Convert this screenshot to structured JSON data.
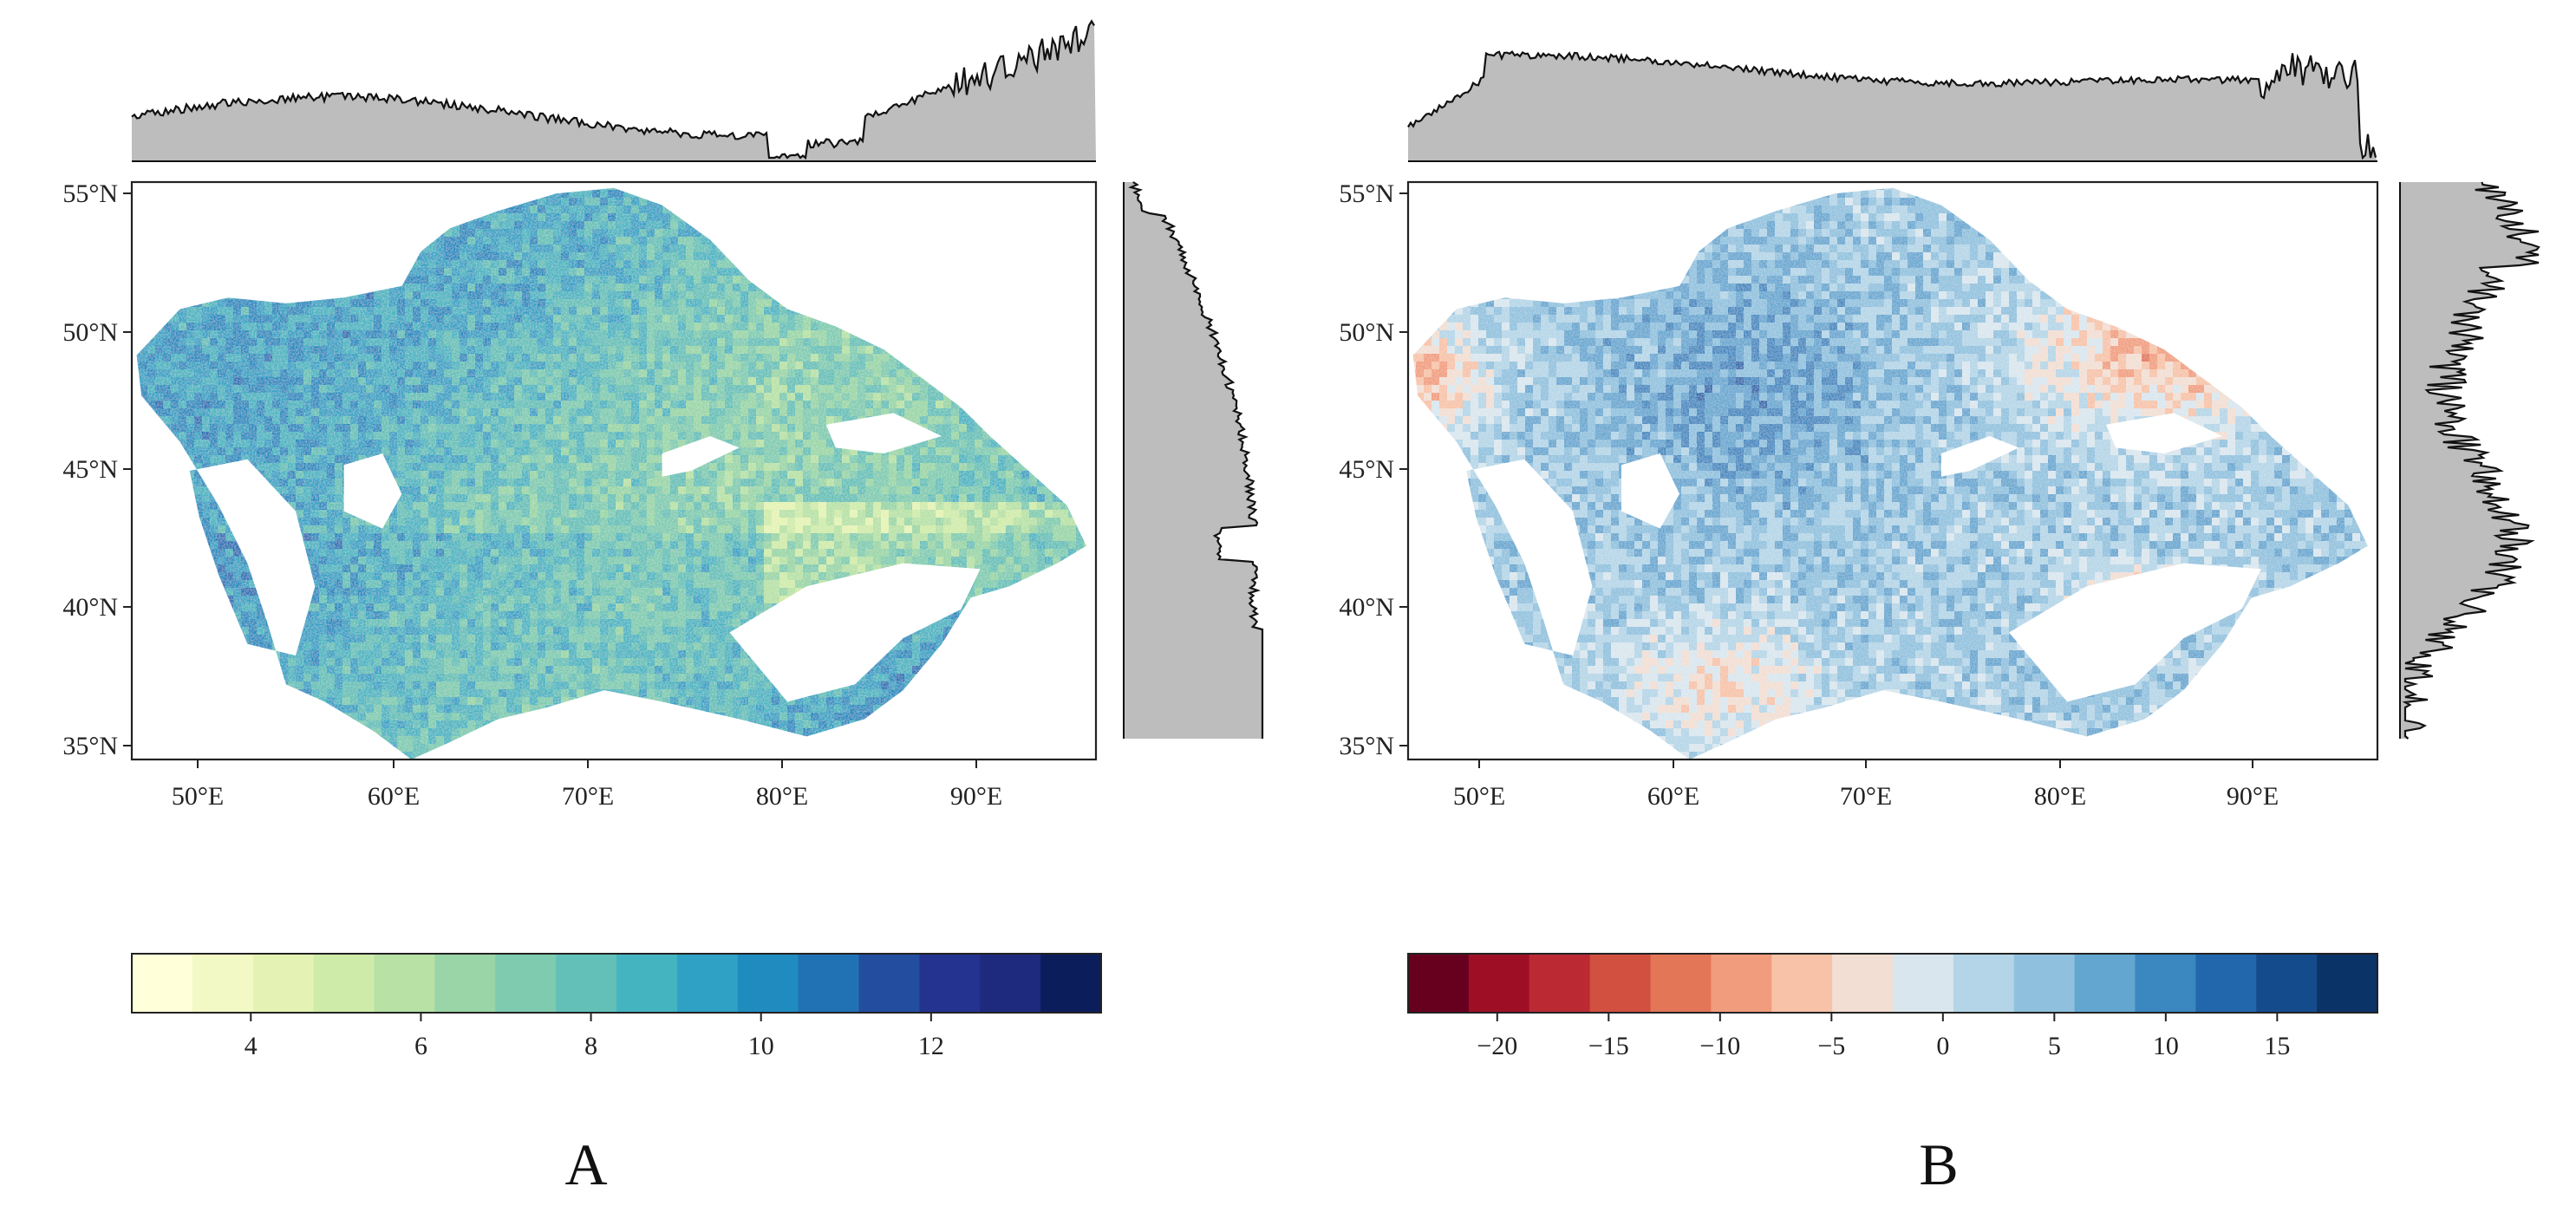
{
  "panels": [
    {
      "id": "A",
      "label": "A",
      "palette": "sequential-yellow-green-blue",
      "longitude_ticks": [
        "50°E",
        "60°E",
        "70°E",
        "80°E",
        "90°E"
      ],
      "latitude_ticks": [
        "55°N",
        "50°N",
        "45°N",
        "40°N",
        "35°N"
      ],
      "colorbar": {
        "min": 2.6,
        "max": 14.0,
        "tick_values": [
          4,
          6,
          8,
          10,
          12
        ],
        "tick_labels": [
          "4",
          "6",
          "8",
          "10",
          "12"
        ],
        "colors": [
          "#ffffd9",
          "#f3f9c5",
          "#e4f3b3",
          "#cfeba9",
          "#b7e1a5",
          "#99d5a6",
          "#7ecbb0",
          "#62c0b8",
          "#44b4c1",
          "#2fa1c4",
          "#1f8bbf",
          "#2171b5",
          "#234ea0",
          "#23338f",
          "#1e2a7e",
          "#0c1d5c"
        ]
      },
      "top_marginal_desc": "Longitudinal profile of mean value (top)",
      "right_marginal_desc": "Latitudinal profile of mean value (right)"
    },
    {
      "id": "B",
      "label": "B",
      "palette": "diverging-red-blue",
      "longitude_ticks": [
        "50°E",
        "60°E",
        "70°E",
        "80°E",
        "90°E"
      ],
      "latitude_ticks": [
        "55°N",
        "50°N",
        "45°N",
        "40°N",
        "35°N"
      ],
      "colorbar": {
        "min": -24.0,
        "max": 19.5,
        "tick_values": [
          -20,
          -15,
          -10,
          -5,
          0,
          5,
          10,
          15
        ],
        "tick_labels": [
          "−20",
          "−15",
          "−10",
          "−5",
          "0",
          "5",
          "10",
          "15"
        ],
        "colors": [
          "#67001f",
          "#9e0f26",
          "#bb2a33",
          "#d1503f",
          "#e27657",
          "#f19c7c",
          "#f7c2a7",
          "#f2ded3",
          "#d9e6ee",
          "#b4d5e7",
          "#8fc1de",
          "#63a6d0",
          "#3b87c0",
          "#2267ac",
          "#144b8c",
          "#0a3368"
        ]
      },
      "top_marginal_desc": "Longitudinal profile of trend (top)",
      "right_marginal_desc": "Latitudinal profile of trend (right)"
    }
  ]
}
